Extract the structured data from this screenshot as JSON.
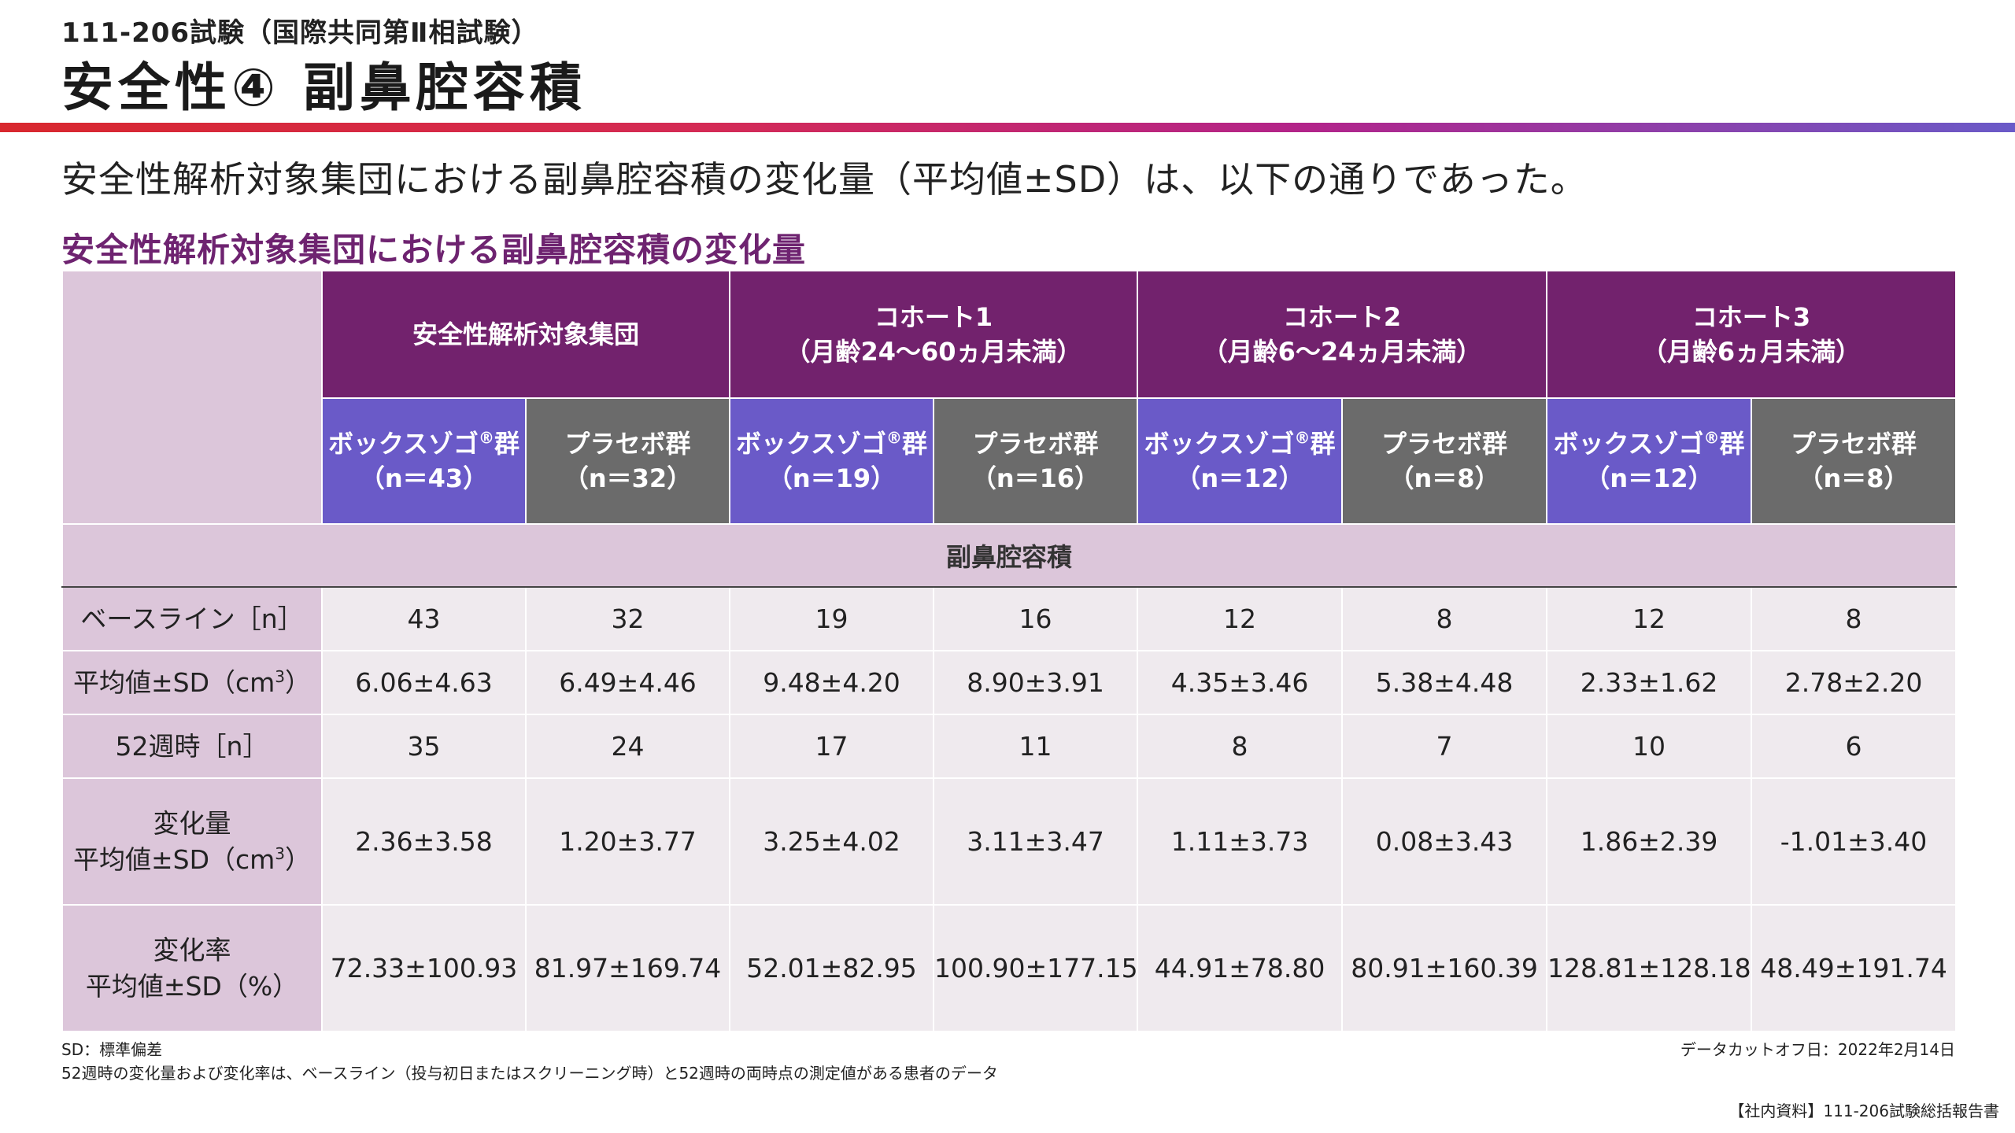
{
  "header": {
    "trial": "111-206試験（国際共同第Ⅱ相試験）",
    "title": "安全性④ 副鼻腔容積"
  },
  "lead_text": "安全性解析対象集団における副鼻腔容積の変化量（平均値±SD）は、以下の通りであった。",
  "table_title": "安全性解析対象集団における副鼻腔容積の変化量",
  "table": {
    "groups": [
      {
        "line1": "安全性解析対象集団",
        "line2": ""
      },
      {
        "line1": "コホート1",
        "line2": "（月齢24～60ヵ月未満）"
      },
      {
        "line1": "コホート2",
        "line2": "（月齢6～24ヵ月未満）"
      },
      {
        "line1": "コホート3",
        "line2": "（月齢6ヵ月未満）"
      }
    ],
    "arm_vox": "ボックスゾゴ",
    "arm_vox_reg": "®",
    "arm_vox_suffix": "群",
    "arm_placebo": "プラセボ群",
    "arm_n": [
      "（n＝43）",
      "（n＝32）",
      "（n＝19）",
      "（n＝16）",
      "（n＝12）",
      "（n＝8）",
      "（n＝12）",
      "（n＝8）"
    ],
    "section_label": "副鼻腔容積",
    "rows": [
      {
        "label": "ベースライン［n］",
        "values": [
          "43",
          "32",
          "19",
          "16",
          "12",
          "8",
          "12",
          "8"
        ]
      },
      {
        "label": "平均値±SD（cm",
        "label_sup": "3",
        "label_end": "）",
        "values": [
          "6.06±4.63",
          "6.49±4.46",
          "9.48±4.20",
          "8.90±3.91",
          "4.35±3.46",
          "5.38±4.48",
          "2.33±1.62",
          "2.78±2.20"
        ]
      },
      {
        "label": "52週時［n］",
        "values": [
          "35",
          "24",
          "17",
          "11",
          "8",
          "7",
          "10",
          "6"
        ]
      },
      {
        "label_line1": "変化量",
        "label": "平均値±SD（cm",
        "label_sup": "3",
        "label_end": "）",
        "values": [
          "2.36±3.58",
          "1.20±3.77",
          "3.25±4.02",
          "3.11±3.47",
          "1.11±3.73",
          "0.08±3.43",
          "1.86±2.39",
          "-1.01±3.40"
        ]
      },
      {
        "label_line1": "変化率",
        "label": "平均値±SD（%）",
        "values": [
          "72.33±100.93",
          "81.97±169.74",
          "52.01±82.95",
          "100.90±177.15",
          "44.91±78.80",
          "80.91±160.39",
          "128.81±128.18",
          "48.49±191.74"
        ]
      }
    ]
  },
  "footnotes": {
    "sd": "SD：標準偏差",
    "note": "52週時の変化量および変化率は、ベースライン（投与初日またはスクリーニング時）と52週時の両時点の測定値がある患者のデータ",
    "cutoff": "データカットオフ日：2022年2月14日",
    "source": "【社内資料】111-206試験総括報告書"
  },
  "colors": {
    "group_header": "#72226d",
    "vox_arm": "#6a5ac8",
    "placebo_arm": "#6b6b6b",
    "label_bg": "#dcc6da",
    "cell_bg": "#efeaee",
    "subtitle": "#6e2370"
  }
}
